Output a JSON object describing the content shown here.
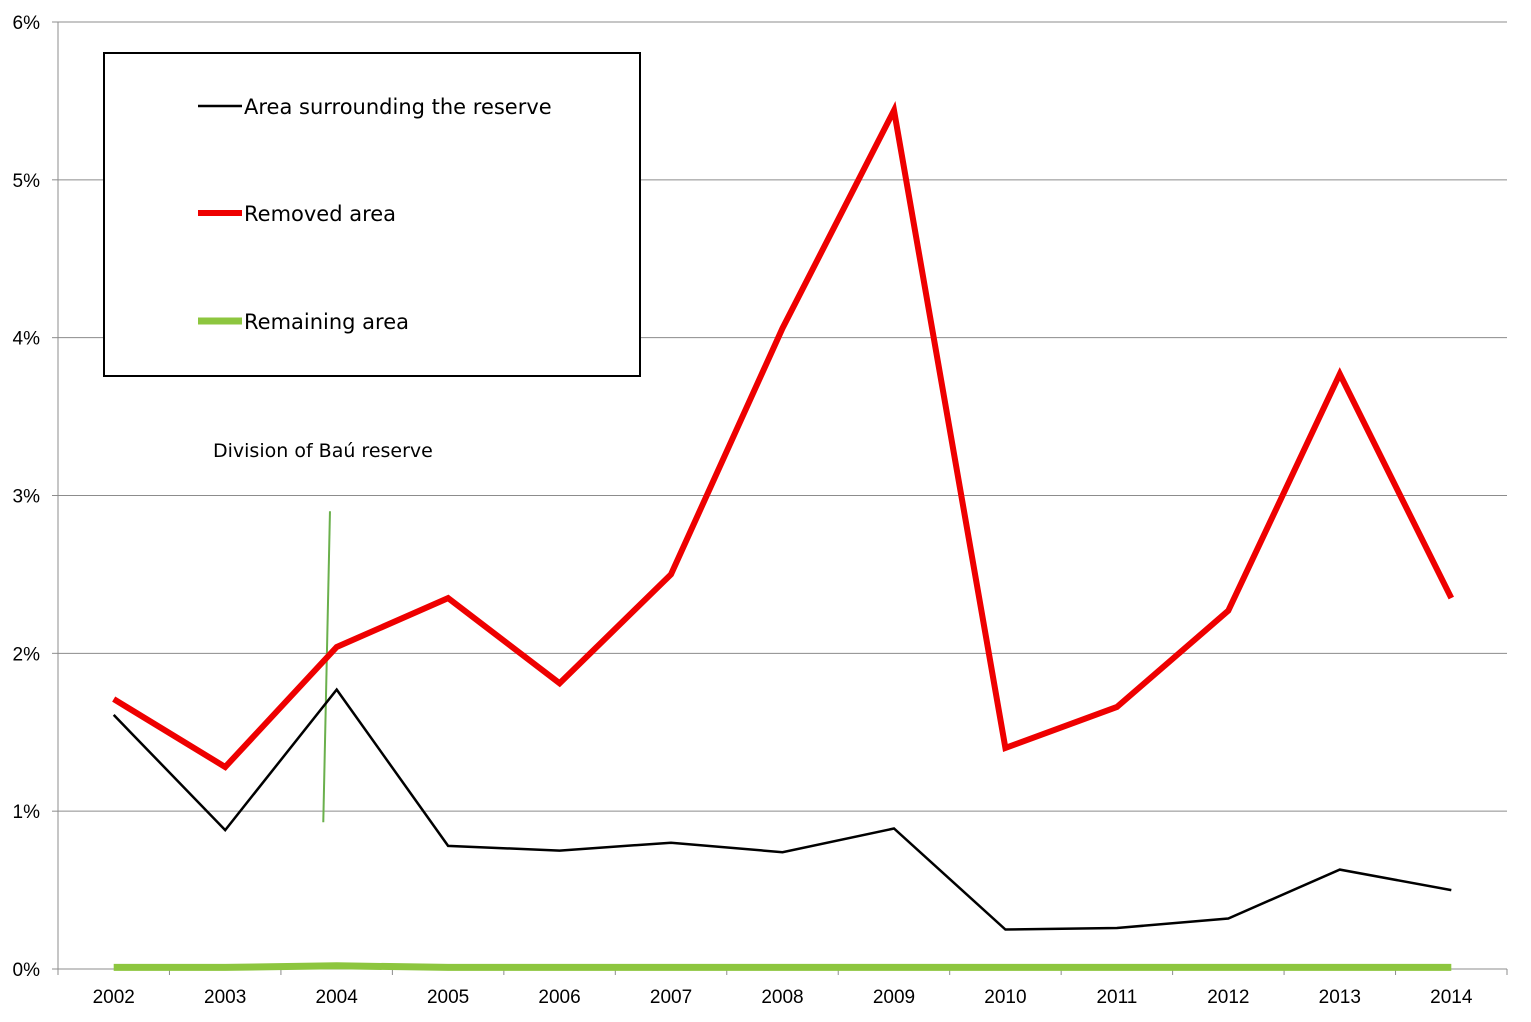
{
  "chart_data": {
    "type": "line",
    "categories": [
      "2002",
      "2003",
      "2004",
      "2005",
      "2006",
      "2007",
      "2008",
      "2009",
      "2010",
      "2011",
      "2012",
      "2013",
      "2014"
    ],
    "ylim": [
      0,
      6
    ],
    "yticks": [
      0,
      1,
      2,
      3,
      4,
      5,
      6
    ],
    "ytick_labels": [
      "0%",
      "1%",
      "2%",
      "3%",
      "4%",
      "5%",
      "6%"
    ],
    "grid": true,
    "legend_position": "top-left",
    "series": [
      {
        "name": "Area surrounding the reserve",
        "color": "#000000",
        "values": [
          1.61,
          0.88,
          1.77,
          0.78,
          0.75,
          0.8,
          0.74,
          0.89,
          0.25,
          0.26,
          0.32,
          0.63,
          0.5
        ]
      },
      {
        "name": "Removed area",
        "color": "#ee0000",
        "values": [
          1.71,
          1.28,
          2.04,
          2.35,
          1.81,
          2.5,
          4.06,
          5.44,
          1.4,
          1.66,
          2.27,
          3.77,
          2.35
        ]
      },
      {
        "name": "Remaining area",
        "color": "#8dc63f",
        "values": [
          0.01,
          0.01,
          0.02,
          0.01,
          0.01,
          0.01,
          0.01,
          0.01,
          0.01,
          0.01,
          0.01,
          0.01,
          0.01
        ]
      }
    ],
    "annotation": {
      "text": "Division of  Baú reserve",
      "color": "#6ab04c",
      "line_start": {
        "x": 2003.88,
        "y": 0.93
      },
      "line_end": {
        "x": 2003.94,
        "y": 2.9
      }
    }
  }
}
